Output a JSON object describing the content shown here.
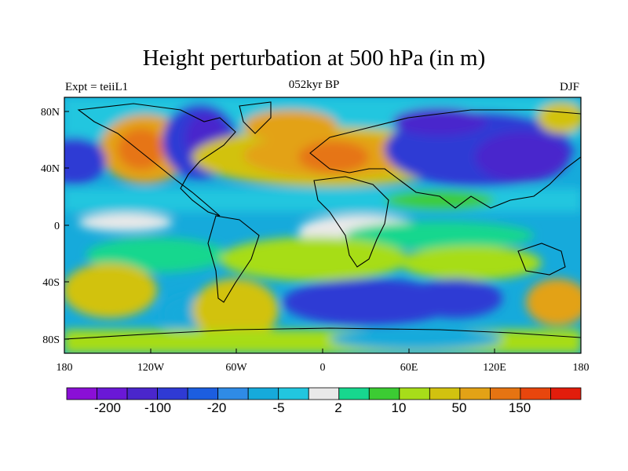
{
  "title": "Height perturbation at 500 hPa (in m)",
  "subtitle_left": "Expt = teiiL1",
  "subtitle_center": "052kyr BP",
  "subtitle_right": "DJF",
  "lat_ticks": [
    "80N",
    "40N",
    "0",
    "40S",
    "80S"
  ],
  "lon_ticks": [
    "180",
    "120W",
    "60W",
    "0",
    "60E",
    "120E",
    "180"
  ],
  "colorbar": {
    "colors": [
      "#8a0fd6",
      "#6a18d6",
      "#4a26cc",
      "#2f3ad4",
      "#1c5ee0",
      "#2f8be6",
      "#16aadb",
      "#22c6df",
      "#e9e9e9",
      "#17d78e",
      "#3ccc33",
      "#a7dd19",
      "#d2c20f",
      "#e3a216",
      "#e67412",
      "#e8460d",
      "#e21d0c"
    ],
    "labels": [
      "-200",
      "-100",
      "-20",
      "-5",
      "2",
      "10",
      "50",
      "150"
    ]
  },
  "colors": {
    "land_outline": "#000000",
    "frame": "#000000"
  }
}
